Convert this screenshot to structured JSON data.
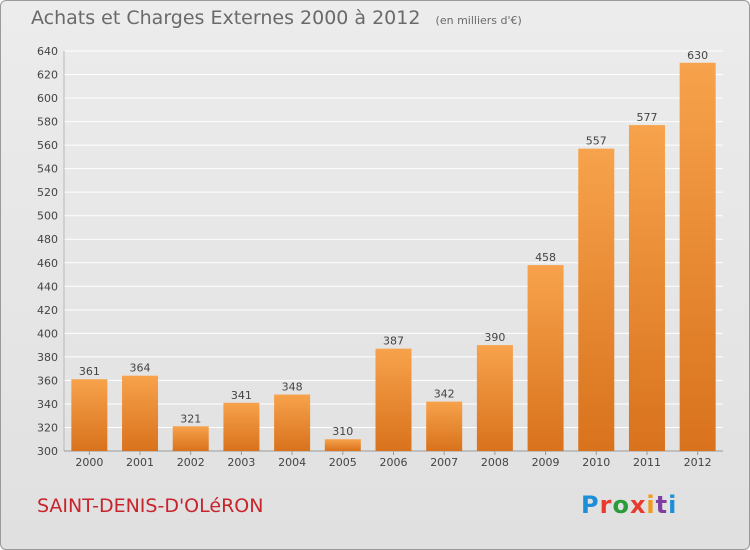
{
  "header": {
    "title": "Achats et Charges Externes 2000 à 2012",
    "unit": "(en milliers d'€)"
  },
  "footer": {
    "commune": "SAINT-DENIS-D'OLéRON",
    "logo_letters": [
      "P",
      "r",
      "o",
      "x",
      "i",
      "t",
      "i"
    ]
  },
  "colors": {
    "bar_light": "#f7a24c",
    "bar_dark": "#d9721c",
    "grid": "#ffffff",
    "commune_text": "#c8242c"
  },
  "chart_data": {
    "type": "bar",
    "categories": [
      "2000",
      "2001",
      "2002",
      "2003",
      "2004",
      "2005",
      "2006",
      "2007",
      "2008",
      "2009",
      "2010",
      "2011",
      "2012"
    ],
    "values": [
      361,
      364,
      321,
      341,
      348,
      310,
      387,
      342,
      390,
      458,
      557,
      577,
      630
    ],
    "ylim": [
      300,
      640
    ],
    "yticks": [
      300,
      320,
      340,
      360,
      380,
      400,
      420,
      440,
      460,
      480,
      500,
      520,
      540,
      560,
      580,
      600,
      620,
      640
    ],
    "grid": true,
    "data_labels": true
  }
}
